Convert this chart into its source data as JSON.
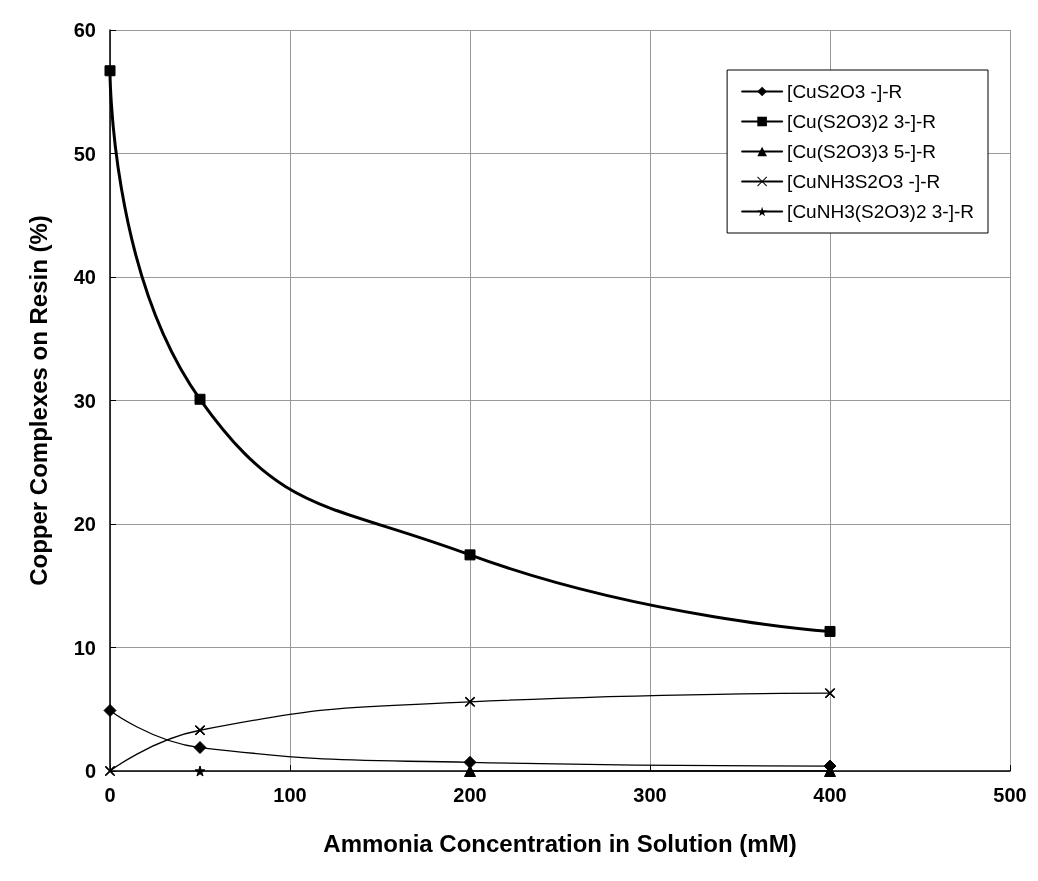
{
  "chart_data": {
    "type": "line",
    "xlabel": "Ammonia Concentration in Solution (mM)",
    "ylabel": "Copper Complexes on Resin (%)",
    "x": [
      0,
      50,
      200,
      400
    ],
    "series": [
      {
        "name": "[CuS2O3 -]-R",
        "color": "#000000",
        "marker": "diamond",
        "values": [
          4.9,
          1.9,
          0.7,
          0.4
        ]
      },
      {
        "name": "[Cu(S2O3)2 3-]-R",
        "color": "#000000",
        "marker": "square",
        "values": [
          56.7,
          30.1,
          17.5,
          11.3
        ]
      },
      {
        "name": "[Cu(S2O3)3 5-]-R",
        "color": "#000000",
        "marker": "triangle",
        "values": [
          null,
          null,
          0,
          0
        ]
      },
      {
        "name": "[CuNH3S2O3 -]-R",
        "color": "#000000",
        "marker": "cross",
        "values": [
          0,
          3.3,
          5.6,
          6.3
        ]
      },
      {
        "name": "[CuNH3(S2O3)2 3-]-R",
        "color": "#000000",
        "marker": "star",
        "values": [
          null,
          0,
          null,
          null
        ]
      }
    ],
    "xlim": [
      0,
      500
    ],
    "xticks": [
      0,
      100,
      200,
      300,
      400,
      500
    ],
    "ylim": [
      0,
      60
    ],
    "yticks": [
      0,
      10,
      20,
      30,
      40,
      50,
      60
    ],
    "grid": true,
    "legend": "top right",
    "line_style": "solid"
  }
}
